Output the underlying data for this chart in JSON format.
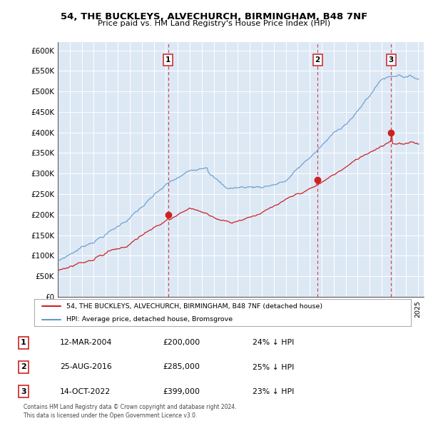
{
  "title": "54, THE BUCKLEYS, ALVECHURCH, BIRMINGHAM, B48 7NF",
  "subtitle": "Price paid vs. HM Land Registry's House Price Index (HPI)",
  "ylim": [
    0,
    620000
  ],
  "yticks": [
    0,
    50000,
    100000,
    150000,
    200000,
    250000,
    300000,
    350000,
    400000,
    450000,
    500000,
    550000,
    600000
  ],
  "ytick_labels": [
    "£0",
    "£50K",
    "£100K",
    "£150K",
    "£200K",
    "£250K",
    "£300K",
    "£350K",
    "£400K",
    "£450K",
    "£500K",
    "£550K",
    "£600K"
  ],
  "hpi_color": "#6699cc",
  "price_color": "#cc2222",
  "vline_color": "#cc2222",
  "sale_dates": [
    2004.19,
    2016.65,
    2022.79
  ],
  "sale_prices": [
    200000,
    285000,
    399000
  ],
  "sale_labels": [
    "1",
    "2",
    "3"
  ],
  "legend_entries": [
    "54, THE BUCKLEYS, ALVECHURCH, BIRMINGHAM, B48 7NF (detached house)",
    "HPI: Average price, detached house, Bromsgrove"
  ],
  "table_data": [
    [
      "1",
      "12-MAR-2004",
      "£200,000",
      "24% ↓ HPI"
    ],
    [
      "2",
      "25-AUG-2016",
      "£285,000",
      "25% ↓ HPI"
    ],
    [
      "3",
      "14-OCT-2022",
      "£399,000",
      "23% ↓ HPI"
    ]
  ],
  "footer": "Contains HM Land Registry data © Crown copyright and database right 2024.\nThis data is licensed under the Open Government Licence v3.0.",
  "background_color": "#ffffff",
  "plot_bg_color": "#dde8f5",
  "xlim_start": 1995,
  "xlim_end": 2025.5
}
